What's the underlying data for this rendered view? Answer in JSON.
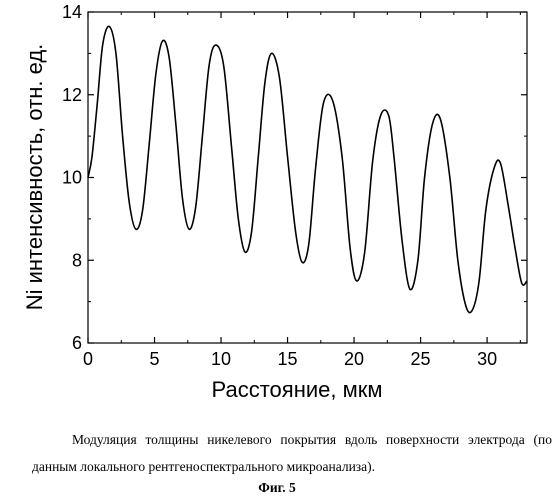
{
  "chart_data": {
    "type": "line",
    "xlabel": "Расстояние, мкм",
    "ylabel": "Ni интенсивность, отн. ед.",
    "xlim": [
      0,
      33
    ],
    "ylim": [
      6,
      14
    ],
    "xticks": [
      0,
      5,
      10,
      15,
      20,
      25,
      30
    ],
    "yticks": [
      6,
      8,
      10,
      12,
      14
    ],
    "grid": false,
    "series": [
      {
        "x": [
          0,
          0.3,
          0.7,
          1.1,
          1.6,
          2.1,
          2.6,
          3.1,
          3.6,
          4.1,
          4.6,
          5.1,
          5.6,
          6.1,
          6.6,
          7.1,
          7.6,
          8.1,
          8.6,
          9.1,
          9.6,
          10.2,
          10.8,
          11.3,
          11.8,
          12.3,
          12.8,
          13.3,
          13.8,
          14.4,
          15.0,
          15.6,
          16.1,
          16.6,
          17.1,
          17.7,
          18.4,
          19.1,
          19.7,
          20.2,
          20.8,
          21.4,
          22.0,
          22.6,
          23.0,
          23.6,
          24.2,
          24.8,
          25.3,
          25.9,
          26.5,
          27.2,
          27.8,
          28.4,
          28.9,
          29.4,
          29.9,
          30.5,
          31.0,
          31.6,
          32.1,
          32.6,
          33.0
        ],
        "values": [
          10.0,
          10.5,
          11.8,
          13.2,
          13.65,
          13.0,
          11.0,
          9.4,
          8.75,
          9.2,
          10.8,
          12.5,
          13.3,
          12.9,
          11.3,
          9.5,
          8.75,
          9.3,
          11.0,
          12.7,
          13.2,
          12.7,
          10.7,
          9.0,
          8.2,
          8.7,
          10.5,
          12.3,
          13.0,
          12.4,
          10.5,
          8.7,
          7.95,
          8.4,
          10.2,
          11.8,
          11.85,
          10.5,
          8.3,
          7.5,
          8.2,
          10.4,
          11.5,
          11.5,
          10.5,
          8.5,
          7.3,
          8.0,
          10.0,
          11.3,
          11.4,
          10.0,
          8.0,
          6.9,
          6.8,
          7.5,
          9.2,
          10.2,
          10.35,
          9.3,
          8.3,
          7.45,
          7.5
        ]
      }
    ]
  },
  "caption": {
    "text": "Модуляция толщины никелевого покрытия вдоль поверхности электрода (по данным локального рентгеноспектрального микроанализа).",
    "figure_label": "Фиг.  5"
  },
  "colors": {
    "line": "#000000",
    "axes": "#000000",
    "background": "#ffffff"
  }
}
